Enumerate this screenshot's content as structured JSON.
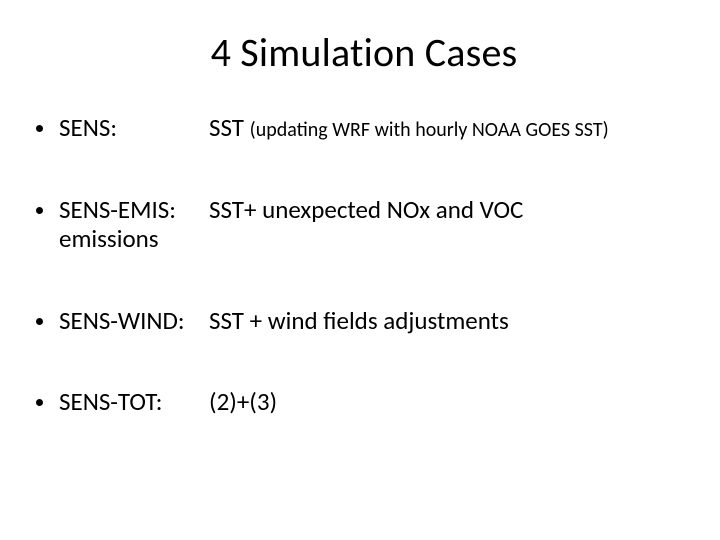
{
  "title": "4 Simulation Cases",
  "items": [
    {
      "label": "SENS:",
      "desc_main": "SST ",
      "desc_sub": "(updating WRF with hourly NOAA GOES SST)",
      "wrap": ""
    },
    {
      "label": "SENS-EMIS:",
      "desc_main": "SST+ unexpected NOx and VOC",
      "desc_sub": "",
      "wrap": "emissions"
    },
    {
      "label": "SENS-WIND:",
      "desc_main": "SST + wind fields adjustments",
      "desc_sub": "",
      "wrap": ""
    },
    {
      "label": "SENS-TOT:",
      "desc_main": "(2)+(3)",
      "desc_sub": "",
      "wrap": ""
    }
  ]
}
